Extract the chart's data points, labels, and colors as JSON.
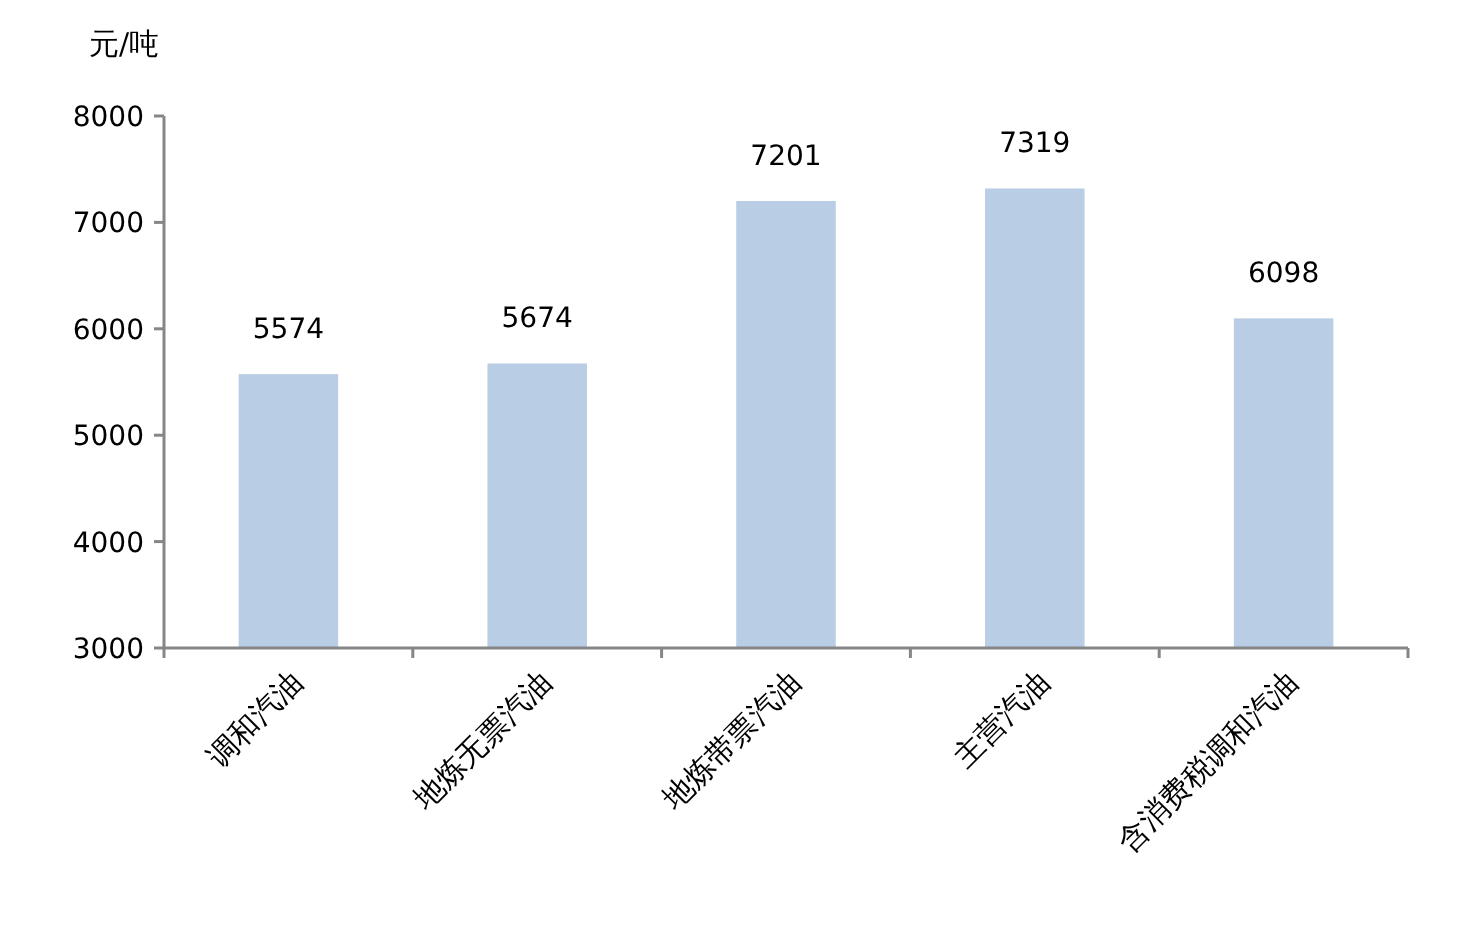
{
  "chart_data": {
    "type": "bar",
    "ylabel": "元/吨",
    "categories": [
      "调和汽油",
      "地炼无票汽油",
      "地炼带票汽油",
      "主营汽油",
      "含消费税调和汽油"
    ],
    "values": [
      5574,
      5674,
      7201,
      7319,
      6098
    ],
    "color": "#b9cde5",
    "ylim": [
      3000,
      8000
    ],
    "yticks": [
      3000,
      4000,
      5000,
      6000,
      7000,
      8000
    ],
    "data_labels": true,
    "grid": false
  }
}
